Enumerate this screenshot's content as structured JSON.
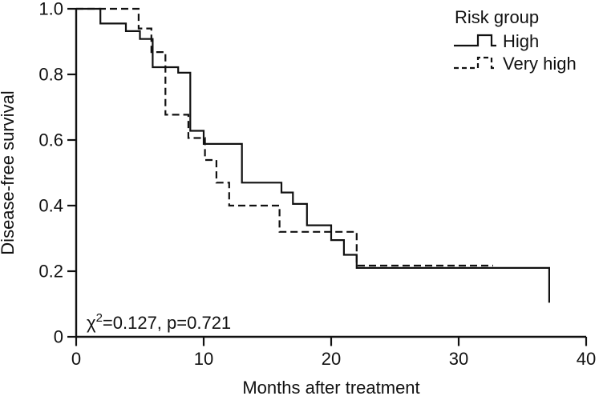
{
  "figure": {
    "background": "#ffffff",
    "line_color": "#111111"
  },
  "chart_data": {
    "type": "line",
    "subtype": "kaplan-meier-step",
    "title": "",
    "xlabel": "Months after treatment",
    "ylabel": "Disease-free survival",
    "xlim": [
      0,
      40
    ],
    "ylim": [
      0,
      1.0
    ],
    "grid": false,
    "x_ticks": [
      0,
      10,
      20,
      30,
      40
    ],
    "x_tick_labels": [
      "0",
      "10",
      "20",
      "30",
      "40"
    ],
    "y_ticks": [
      0,
      0.2,
      0.4,
      0.6,
      0.8,
      1.0
    ],
    "y_tick_labels": [
      "0",
      "0.2",
      "0.4",
      "0.6",
      "0.8",
      "1.0"
    ],
    "legend": {
      "title": "Risk group",
      "position": "top-right",
      "entries": [
        {
          "label": "High",
          "style": "solid"
        },
        {
          "label": "Very high",
          "style": "dashed"
        }
      ]
    },
    "annotation": {
      "text": "χ2=0.127, p=0.721",
      "chi": "χ",
      "sup": "2",
      "rest": "=0.127, p=0.721",
      "chi_square": 0.127,
      "p_value": 0.721
    },
    "series": [
      {
        "name": "High",
        "style": "solid",
        "steps": [
          [
            0,
            1.0
          ],
          [
            1.9,
            0.955
          ],
          [
            3.9,
            0.932
          ],
          [
            5.0,
            0.908
          ],
          [
            6.0,
            0.822
          ],
          [
            8.0,
            0.805
          ],
          [
            8.95,
            0.628
          ],
          [
            10.0,
            0.588
          ],
          [
            13.0,
            0.47
          ],
          [
            16.1,
            0.44
          ],
          [
            17.0,
            0.405
          ],
          [
            18.1,
            0.34
          ],
          [
            20.0,
            0.295
          ],
          [
            21.0,
            0.25
          ],
          [
            22.0,
            0.21
          ],
          [
            37.1,
            0.104
          ]
        ],
        "end_time": 37.1
      },
      {
        "name": "Very high",
        "style": "dashed",
        "steps": [
          [
            0,
            1.0
          ],
          [
            4.9,
            0.94
          ],
          [
            5.9,
            0.868
          ],
          [
            7.0,
            0.677
          ],
          [
            8.8,
            0.606
          ],
          [
            10.1,
            0.539
          ],
          [
            11.0,
            0.47
          ],
          [
            12.0,
            0.4
          ],
          [
            15.95,
            0.32
          ],
          [
            22.0,
            0.217
          ]
        ],
        "end_time": 32.7
      }
    ]
  }
}
